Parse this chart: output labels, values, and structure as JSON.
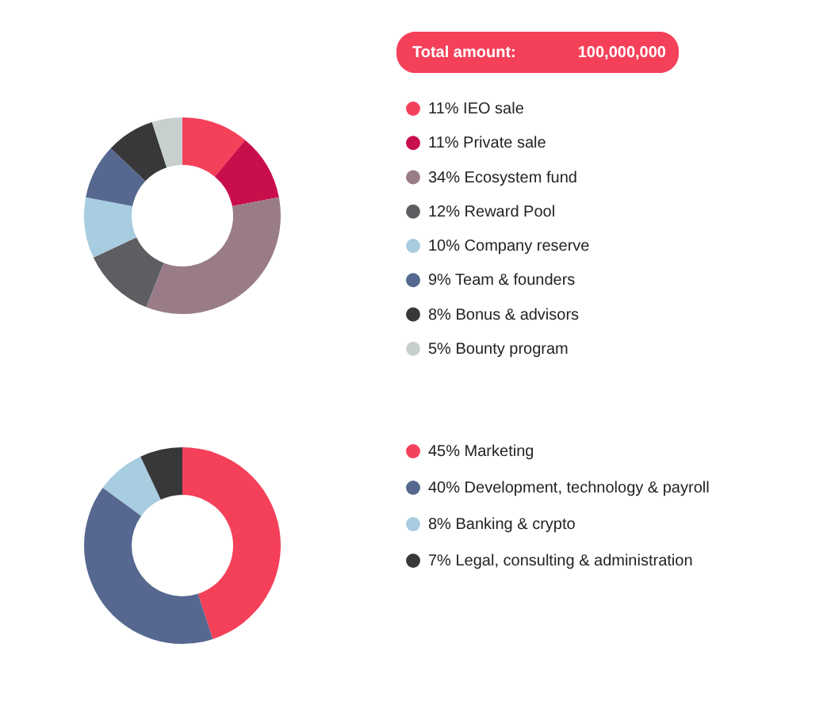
{
  "chart_data": [
    {
      "type": "donut",
      "annotations": [
        "Total amount:",
        "100,000,000"
      ],
      "legend": "right",
      "categories": [
        "IEO sale",
        "Private sale",
        "Ecosystem fund",
        "Reward Pool",
        "Company reserve",
        "Team & founders",
        "Bonus & advisors",
        "Bounty program"
      ],
      "values": [
        11,
        11,
        34,
        12,
        10,
        9,
        8,
        5
      ],
      "value_labels": [
        "11%",
        "11%",
        "34%",
        "12%",
        "10%",
        "9%",
        "8%",
        "5%"
      ],
      "colors": [
        "#f5405a",
        "#c90f4b",
        "#9a7c88",
        "#5e5e62",
        "#a8cce0",
        "#566890",
        "#38383b",
        "#c8cfcf"
      ]
    },
    {
      "type": "donut",
      "legend": "right",
      "categories": [
        "Marketing",
        "Development, technology & payroll",
        "Banking & crypto",
        "Legal, consulting & administration"
      ],
      "values": [
        45,
        40,
        8,
        7
      ],
      "value_labels": [
        "45%",
        "40%",
        "8%",
        "7%"
      ],
      "colors": [
        "#f5405a",
        "#566890",
        "#a8cce0",
        "#38383b"
      ]
    }
  ]
}
